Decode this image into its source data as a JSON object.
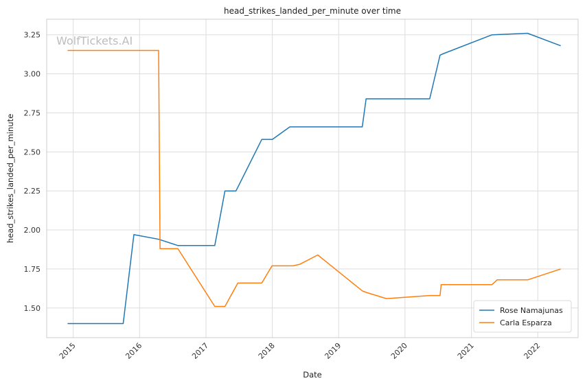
{
  "chart_data": {
    "type": "line",
    "title": "head_strikes_landed_per_minute over time",
    "xlabel": "Date",
    "ylabel": "head_strikes_landed_per_minute",
    "watermark": "WolfTickets.AI",
    "x_ticks": [
      "2015",
      "2016",
      "2017",
      "2018",
      "2019",
      "2020",
      "2021",
      "2022"
    ],
    "y_ticks": [
      "1.50",
      "1.75",
      "2.00",
      "2.25",
      "2.50",
      "2.75",
      "3.00",
      "3.25"
    ],
    "xlim": [
      "2014-08-08",
      "2022-08-11"
    ],
    "ylim": [
      1.31,
      3.35
    ],
    "grid": true,
    "legend_position": "lower-right",
    "colors": {
      "Rose Namajunas": "#1f77b4",
      "Carla Esparza": "#ff7f0e"
    },
    "series": [
      {
        "name": "Rose Namajunas",
        "x": [
          "2014-12-01",
          "2015-10-03",
          "2015-12-01",
          "2016-04-16",
          "2016-07-30",
          "2017-02-18",
          "2017-04-15",
          "2017-06-15",
          "2017-11-04",
          "2018-01-01",
          "2018-04-07",
          "2019-05-11",
          "2019-06-01",
          "2020-05-16",
          "2020-07-12",
          "2020-08-01",
          "2021-04-24",
          "2021-11-06",
          "2022-05-07"
        ],
        "values": [
          1.4,
          1.4,
          1.97,
          1.94,
          1.9,
          1.9,
          2.25,
          2.25,
          2.58,
          2.58,
          2.66,
          2.66,
          2.84,
          2.84,
          3.12,
          3.13,
          3.25,
          3.26,
          3.18
        ]
      },
      {
        "name": "Carla Esparza",
        "x": [
          "2014-12-01",
          "2016-04-15",
          "2016-04-23",
          "2016-07-30",
          "2017-02-18",
          "2017-04-15",
          "2017-06-25",
          "2017-11-04",
          "2017-12-30",
          "2018-04-25",
          "2018-06-01",
          "2018-09-08",
          "2019-05-11",
          "2019-06-01",
          "2019-09-21",
          "2020-05-16",
          "2020-07-12",
          "2020-07-18",
          "2021-04-24",
          "2021-05-22",
          "2021-11-06",
          "2022-05-07"
        ],
        "values": [
          3.15,
          3.15,
          1.88,
          1.88,
          1.51,
          1.51,
          1.66,
          1.66,
          1.77,
          1.77,
          1.78,
          1.84,
          1.61,
          1.6,
          1.56,
          1.58,
          1.58,
          1.65,
          1.65,
          1.68,
          1.68,
          1.75
        ]
      }
    ]
  }
}
